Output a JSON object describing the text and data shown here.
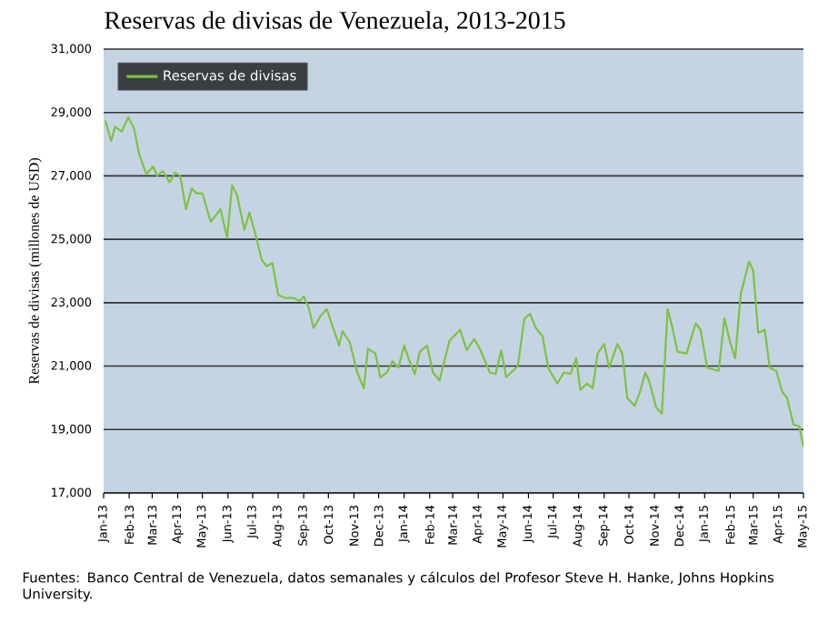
{
  "chart_data": {
    "type": "line",
    "title": "Reservas de divisas de Venezuela, 2013-2015",
    "ylabel": "Reservas de divisas (millones de USD)",
    "annotations": [
      "Fuentes: Banco Central de Venezuela, datos semanales y cálculos del Profesor Steve H. Hanke, Johns Hopkins University."
    ],
    "x": [
      "2013-01-03",
      "2013-01-10",
      "2013-01-15",
      "2013-01-23",
      "2013-01-31",
      "2013-02-07",
      "2013-02-13",
      "2013-02-22",
      "2013-03-02",
      "2013-03-07",
      "2013-03-14",
      "2013-03-22",
      "2013-03-29",
      "2013-04-04",
      "2013-04-11",
      "2013-04-18",
      "2013-04-24",
      "2013-05-01",
      "2013-05-11",
      "2013-05-23",
      "2013-05-31",
      "2013-06-06",
      "2013-06-12",
      "2013-06-21",
      "2013-06-27",
      "2013-07-04",
      "2013-07-12",
      "2013-07-18",
      "2013-07-25",
      "2013-08-01",
      "2013-08-09",
      "2013-08-20",
      "2013-08-27",
      "2013-09-01",
      "2013-09-07",
      "2013-09-13",
      "2013-09-22",
      "2013-09-29",
      "2013-10-14",
      "2013-10-18",
      "2013-10-27",
      "2013-11-05",
      "2013-11-13",
      "2013-11-18",
      "2013-11-27",
      "2013-12-03",
      "2013-12-11",
      "2013-12-18",
      "2013-12-25",
      "2014-01-01",
      "2014-01-07",
      "2014-01-14",
      "2014-01-20",
      "2014-01-29",
      "2014-02-05",
      "2014-02-13",
      "2014-02-25",
      "2014-03-10",
      "2014-03-18",
      "2014-03-27",
      "2014-04-03",
      "2014-04-15",
      "2014-04-22",
      "2014-04-29",
      "2014-05-05",
      "2014-05-19",
      "2014-05-27",
      "2014-06-03",
      "2014-06-10",
      "2014-06-18",
      "2014-06-25",
      "2014-07-06",
      "2014-07-14",
      "2014-07-22",
      "2014-07-29",
      "2014-08-03",
      "2014-08-11",
      "2014-08-18",
      "2014-08-24",
      "2014-09-01",
      "2014-09-07",
      "2014-09-17",
      "2014-09-23",
      "2014-09-29",
      "2014-10-08",
      "2014-10-14",
      "2014-10-21",
      "2014-10-26",
      "2014-11-03",
      "2014-11-10",
      "2014-11-17",
      "2014-11-23",
      "2014-11-29",
      "2014-12-10",
      "2014-12-21",
      "2014-12-27",
      "2015-01-04",
      "2015-01-18",
      "2015-01-25",
      "2015-02-01",
      "2015-02-07",
      "2015-02-14",
      "2015-02-24",
      "2015-03-01",
      "2015-03-07",
      "2015-03-15",
      "2015-03-21",
      "2015-03-29",
      "2015-04-05",
      "2015-04-11",
      "2015-04-19",
      "2015-04-26",
      "2015-05-01"
    ],
    "series": [
      {
        "name": "Reservas de divisas",
        "color": "#7dc242",
        "values": [
          28750,
          28100,
          28550,
          28400,
          28850,
          28500,
          27700,
          27050,
          27300,
          27000,
          27150,
          26800,
          27100,
          27000,
          25950,
          26600,
          26450,
          26450,
          25550,
          25950,
          25050,
          26700,
          26400,
          25300,
          25850,
          25200,
          24350,
          24150,
          24250,
          23250,
          23150,
          23150,
          23050,
          23200,
          22850,
          22200,
          22600,
          22800,
          21650,
          22100,
          21750,
          20800,
          20300,
          21550,
          21400,
          20650,
          20800,
          21150,
          20950,
          21650,
          21200,
          20750,
          21450,
          21650,
          20800,
          20550,
          21800,
          22150,
          21500,
          21850,
          21550,
          20800,
          20750,
          21500,
          20650,
          21000,
          22500,
          22650,
          22200,
          21950,
          20950,
          20450,
          20800,
          20750,
          21250,
          20250,
          20450,
          20300,
          21400,
          21700,
          20950,
          21700,
          21400,
          20000,
          19750,
          20150,
          20800,
          20500,
          19700,
          19500,
          22800,
          22200,
          21450,
          21400,
          22350,
          22150,
          20950,
          20850,
          22500,
          21750,
          21250,
          23300,
          24300,
          24000,
          22050,
          22150,
          20950,
          20850,
          20200,
          20000,
          19150,
          19100,
          18450
        ]
      }
    ],
    "xlim": [
      "2013-01-01",
      "2015-05-01"
    ],
    "xticks": [
      {
        "value": "2013-01-01",
        "label": "Jan-13"
      },
      {
        "value": "2013-02-01",
        "label": "Feb-13"
      },
      {
        "value": "2013-03-01",
        "label": "Mar-13"
      },
      {
        "value": "2013-04-01",
        "label": "Apr-13"
      },
      {
        "value": "2013-05-01",
        "label": "May-13"
      },
      {
        "value": "2013-06-01",
        "label": "Jun-13"
      },
      {
        "value": "2013-07-01",
        "label": "Jul-13"
      },
      {
        "value": "2013-08-01",
        "label": "Aug-13"
      },
      {
        "value": "2013-09-01",
        "label": "Sep-13"
      },
      {
        "value": "2013-10-01",
        "label": "Oct-13"
      },
      {
        "value": "2013-11-01",
        "label": "Nov-13"
      },
      {
        "value": "2013-12-01",
        "label": "Dec-13"
      },
      {
        "value": "2014-01-01",
        "label": "Jan-14"
      },
      {
        "value": "2014-02-01",
        "label": "Feb-14"
      },
      {
        "value": "2014-03-01",
        "label": "Mar-14"
      },
      {
        "value": "2014-04-01",
        "label": "Apr-14"
      },
      {
        "value": "2014-05-01",
        "label": "May-14"
      },
      {
        "value": "2014-06-01",
        "label": "Jun-14"
      },
      {
        "value": "2014-07-01",
        "label": "Jul-14"
      },
      {
        "value": "2014-08-01",
        "label": "Aug-14"
      },
      {
        "value": "2014-09-01",
        "label": "Sep-14"
      },
      {
        "value": "2014-10-01",
        "label": "Oct-14"
      },
      {
        "value": "2014-11-01",
        "label": "Nov-14"
      },
      {
        "value": "2014-12-01",
        "label": "Dec-14"
      },
      {
        "value": "2015-01-01",
        "label": "Jan-15"
      },
      {
        "value": "2015-02-01",
        "label": "Feb-15"
      },
      {
        "value": "2015-03-01",
        "label": "Mar-15"
      },
      {
        "value": "2015-04-01",
        "label": "Apr-15"
      },
      {
        "value": "2015-05-01",
        "label": "May-15"
      }
    ],
    "ylim": [
      17000,
      31000
    ],
    "yticks": [
      {
        "value": 17000,
        "label": "17,000"
      },
      {
        "value": 19000,
        "label": "19,000"
      },
      {
        "value": 21000,
        "label": "21,000"
      },
      {
        "value": 23000,
        "label": "23,000"
      },
      {
        "value": 25000,
        "label": "25,000"
      },
      {
        "value": 27000,
        "label": "27,000"
      },
      {
        "value": 29000,
        "label": "29,000"
      },
      {
        "value": 31000,
        "label": "31,000"
      }
    ],
    "grid": "y",
    "legend": "top left",
    "marker": "none",
    "line_style": "solid"
  }
}
